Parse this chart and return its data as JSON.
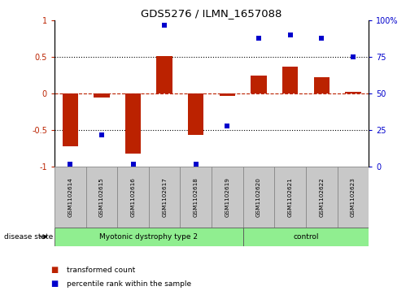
{
  "title": "GDS5276 / ILMN_1657088",
  "samples": [
    "GSM1102614",
    "GSM1102615",
    "GSM1102616",
    "GSM1102617",
    "GSM1102618",
    "GSM1102619",
    "GSM1102620",
    "GSM1102621",
    "GSM1102622",
    "GSM1102623"
  ],
  "transformed_count": [
    -0.72,
    -0.05,
    -0.82,
    0.52,
    -0.56,
    -0.03,
    0.25,
    0.37,
    0.22,
    0.02
  ],
  "percentile_rank": [
    2,
    22,
    2,
    97,
    2,
    28,
    88,
    90,
    88,
    75
  ],
  "disease_groups": [
    {
      "label": "Myotonic dystrophy type 2",
      "start": 0,
      "end": 6
    },
    {
      "label": "control",
      "start": 6,
      "end": 10
    }
  ],
  "bar_color": "#BB2200",
  "dot_color": "#0000CC",
  "ylim_left": [
    -1.0,
    1.0
  ],
  "ylim_right": [
    0,
    100
  ],
  "yticks_left": [
    -1,
    -0.5,
    0,
    0.5,
    1
  ],
  "yticks_right": [
    0,
    25,
    50,
    75,
    100
  ],
  "yticklabels_right": [
    "0",
    "25",
    "50",
    "75",
    "100%"
  ],
  "hlines_dotted": [
    0.5,
    -0.5
  ],
  "hline_red_dashed": 0,
  "legend_items": [
    {
      "label": "transformed count",
      "color": "#BB2200"
    },
    {
      "label": "percentile rank within the sample",
      "color": "#0000CC"
    }
  ],
  "disease_state_label": "disease state",
  "group_color": "#90EE90",
  "label_box_color": "#C8C8C8",
  "bar_width": 0.5
}
